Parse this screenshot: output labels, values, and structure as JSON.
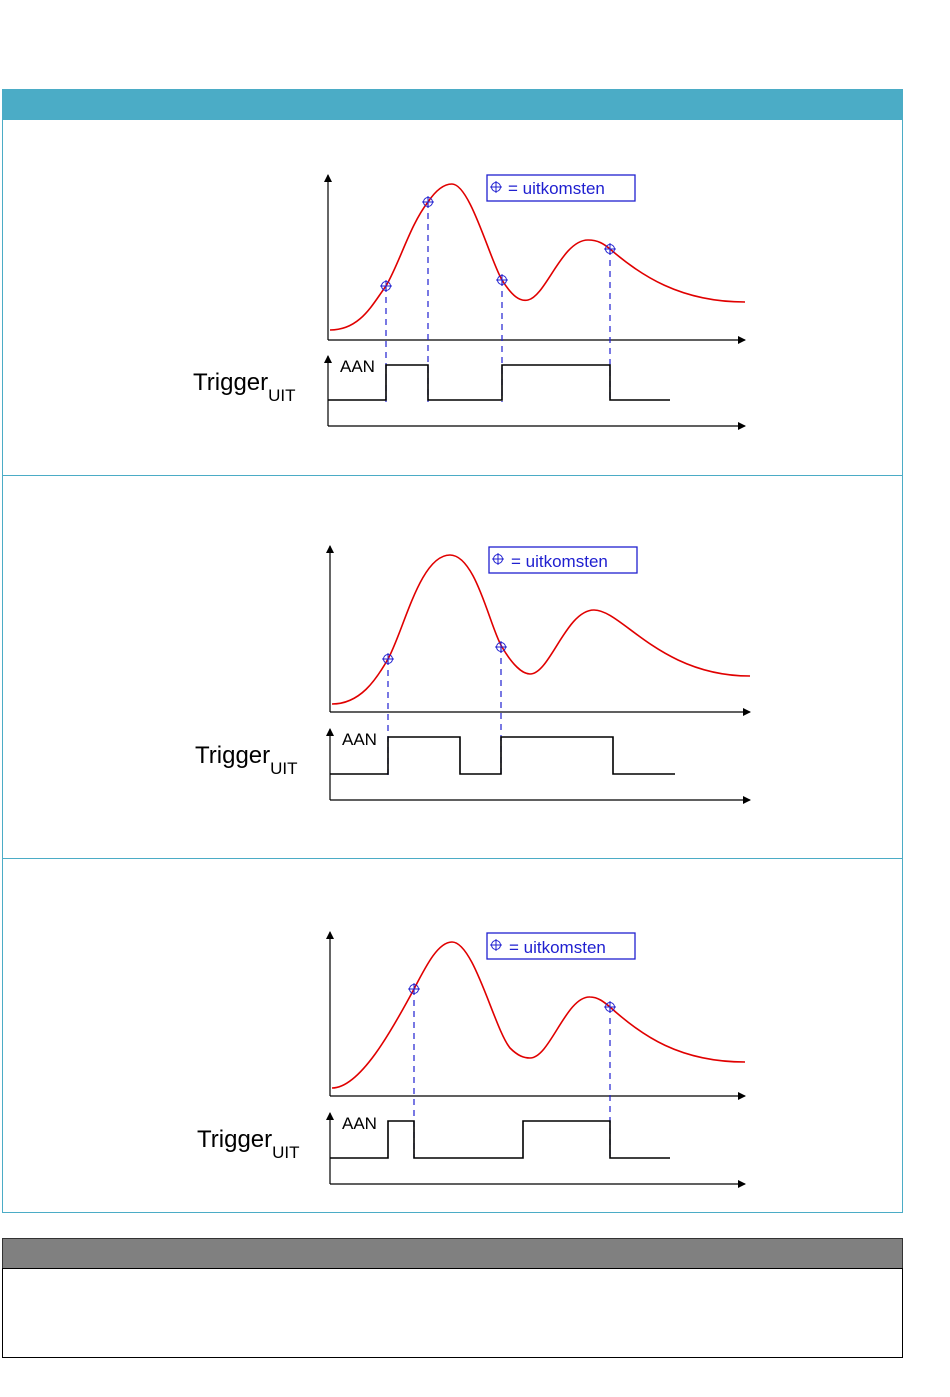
{
  "legend_text": "= uitkomsten",
  "trigger_main": "Trigger",
  "trigger_sub": "UIT",
  "aan_label": "AAN",
  "colors": {
    "accent": "#4bacc6",
    "curve": "#e00000",
    "marker": "#2020d0",
    "gray": "#808080"
  },
  "panels": [
    {
      "outcome_count": 4
    },
    {
      "outcome_count": 2
    },
    {
      "outcome_count": 2
    }
  ]
}
